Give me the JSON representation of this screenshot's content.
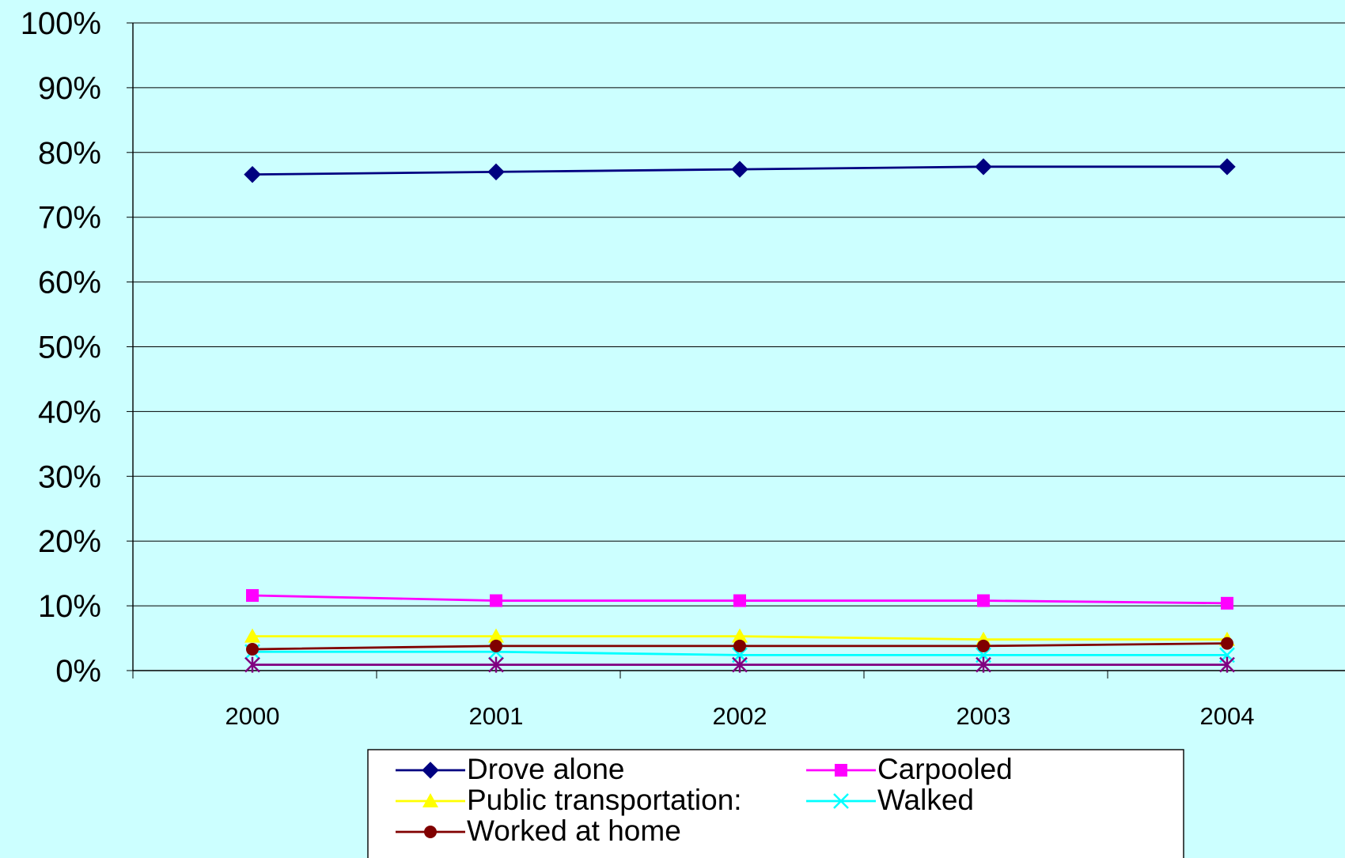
{
  "chart_data": {
    "type": "line",
    "categories": [
      "2000",
      "2001",
      "2002",
      "2003",
      "2004"
    ],
    "ylim": [
      0,
      100
    ],
    "y_ticks": [
      "0%",
      "10%",
      "20%",
      "30%",
      "40%",
      "50%",
      "60%",
      "70%",
      "80%",
      "90%",
      "100%"
    ],
    "grid": true,
    "legend_position": "bottom",
    "title": "",
    "xlabel": "",
    "ylabel": "",
    "series": [
      {
        "name": "Drove alone",
        "color": "#000080",
        "marker": "diamond",
        "values": [
          76.6,
          77.0,
          77.4,
          77.8,
          77.8
        ]
      },
      {
        "name": "Carpooled",
        "color": "#ff00ff",
        "marker": "square",
        "values": [
          11.6,
          10.8,
          10.8,
          10.8,
          10.4
        ]
      },
      {
        "name": "Public transportation:",
        "color": "#ffff00",
        "marker": "triangle",
        "values": [
          5.3,
          5.3,
          5.3,
          4.8,
          4.8
        ]
      },
      {
        "name": "Walked",
        "color": "#00ffff",
        "marker": "x",
        "values": [
          2.9,
          2.9,
          2.4,
          2.4,
          2.4
        ]
      },
      {
        "name": "Worked at home",
        "color": "#800000",
        "marker": "circle",
        "values": [
          3.3,
          3.8,
          3.8,
          3.8,
          4.2
        ]
      },
      {
        "name": "",
        "color": "#800080",
        "marker": "star",
        "values": [
          0.9,
          0.9,
          0.9,
          0.9,
          0.9
        ]
      }
    ]
  }
}
